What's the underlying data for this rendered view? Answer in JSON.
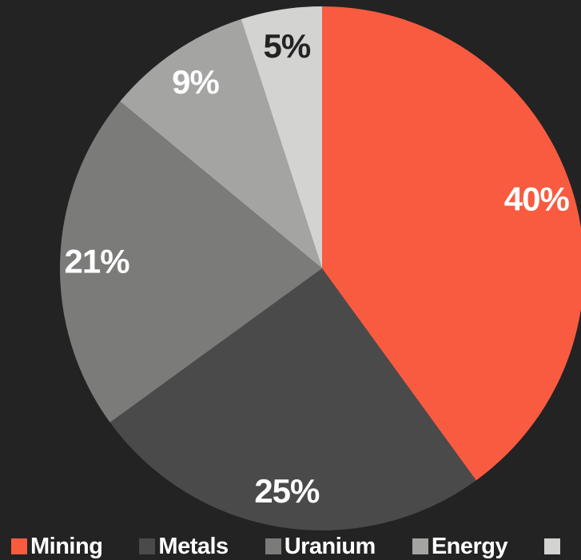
{
  "chart_data": {
    "type": "pie",
    "categories": [
      "Mining",
      "Metals",
      "Uranium",
      "Energy",
      ""
    ],
    "values": [
      40,
      25,
      21,
      9,
      5
    ],
    "value_labels": [
      "40%",
      "25%",
      "21%",
      "9%",
      "5%"
    ],
    "title": "",
    "legend": "bottom",
    "colors": [
      "#f95b40",
      "#4a4a4a",
      "#7b7b7a",
      "#a4a4a3",
      "#d3d3d2"
    ],
    "label_colors": [
      "#ffffff",
      "#ffffff",
      "#ffffff",
      "#ffffff",
      "#232323"
    ]
  }
}
